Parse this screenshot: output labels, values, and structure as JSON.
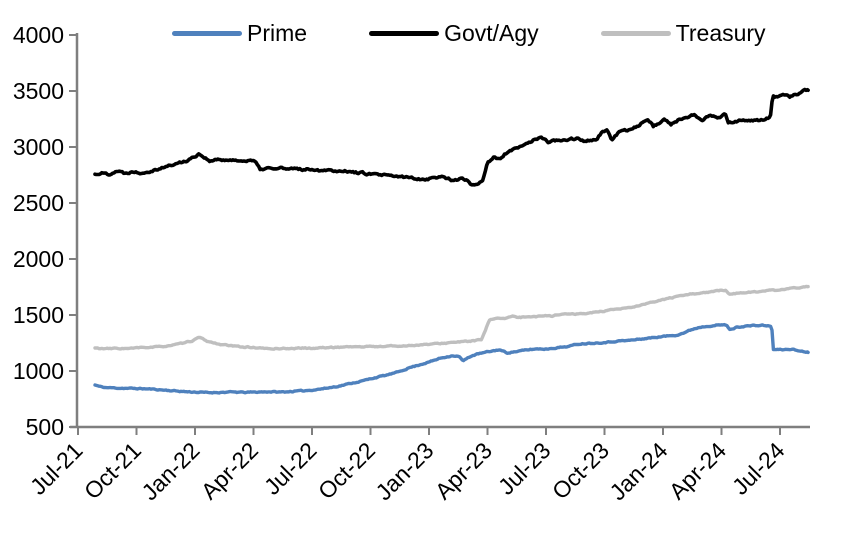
{
  "page": {
    "background": "#ffffff"
  },
  "chart_data": {
    "type": "line",
    "title": "",
    "legend": {
      "position": "top",
      "entries": [
        "Prime",
        "Govt/Agy",
        "Treasury"
      ]
    },
    "x_axis": {
      "unit": "months_since_Jul_2021",
      "tick_labels": [
        "Jul-21",
        "Oct-21",
        "Jan-22",
        "Apr-22",
        "Jul-22",
        "Oct-22",
        "Jan-23",
        "Apr-23",
        "Jul-23",
        "Oct-23",
        "Jan-24",
        "Apr-24",
        "Jul-24"
      ],
      "tick_months": [
        0,
        3,
        6,
        9,
        12,
        15,
        18,
        21,
        24,
        27,
        30,
        33,
        36
      ],
      "label_rotation_deg": -45,
      "data_start_month": 0.87,
      "data_end_month": 37.44
    },
    "y_axis": {
      "min": 500,
      "max": 4000,
      "step": 500,
      "tick_labels": [
        "500",
        "1000",
        "1500",
        "2000",
        "2500",
        "3000",
        "3500",
        "4000"
      ],
      "gridlines": false
    },
    "axis_color": "#7f7f7f",
    "series": [
      {
        "name": "Prime",
        "color": "#4F81BD",
        "points": [
          [
            0.87,
            875
          ],
          [
            1.1,
            862
          ],
          [
            1.4,
            852
          ],
          [
            2,
            848
          ],
          [
            2.6,
            845
          ],
          [
            3.2,
            843
          ],
          [
            3.8,
            838
          ],
          [
            4.4,
            830
          ],
          [
            5,
            822
          ],
          [
            5.6,
            815
          ],
          [
            6.2,
            810
          ],
          [
            6.8,
            807
          ],
          [
            7.4,
            810
          ],
          [
            8,
            812
          ],
          [
            8.6,
            809
          ],
          [
            9.2,
            812
          ],
          [
            9.8,
            815
          ],
          [
            10.4,
            812
          ],
          [
            11,
            818
          ],
          [
            11.6,
            824
          ],
          [
            12.2,
            834
          ],
          [
            12.8,
            848
          ],
          [
            13.4,
            866
          ],
          [
            14,
            890
          ],
          [
            14.6,
            912
          ],
          [
            15.2,
            940
          ],
          [
            15.8,
            962
          ],
          [
            16.4,
            990
          ],
          [
            17,
            1030
          ],
          [
            17.5,
            1055
          ],
          [
            18,
            1080
          ],
          [
            18.6,
            1115
          ],
          [
            19.2,
            1138
          ],
          [
            19.55,
            1128
          ],
          [
            19.75,
            1088
          ],
          [
            20.1,
            1130
          ],
          [
            20.5,
            1152
          ],
          [
            21,
            1170
          ],
          [
            21.6,
            1190
          ],
          [
            22,
            1162
          ],
          [
            22.4,
            1172
          ],
          [
            22.8,
            1182
          ],
          [
            23.2,
            1192
          ],
          [
            23.6,
            1198
          ],
          [
            24,
            1196
          ],
          [
            24.4,
            1205
          ],
          [
            24.8,
            1212
          ],
          [
            25.2,
            1222
          ],
          [
            25.7,
            1242
          ],
          [
            26.2,
            1248
          ],
          [
            26.7,
            1252
          ],
          [
            27.2,
            1258
          ],
          [
            27.7,
            1268
          ],
          [
            28.2,
            1272
          ],
          [
            28.7,
            1282
          ],
          [
            29.2,
            1292
          ],
          [
            29.7,
            1302
          ],
          [
            30.2,
            1312
          ],
          [
            30.7,
            1322
          ],
          [
            31.1,
            1342
          ],
          [
            31.5,
            1372
          ],
          [
            31.9,
            1392
          ],
          [
            32.3,
            1402
          ],
          [
            32.7,
            1408
          ],
          [
            33.1,
            1412
          ],
          [
            33.25,
            1408
          ],
          [
            33.45,
            1368
          ],
          [
            33.8,
            1392
          ],
          [
            34.3,
            1402
          ],
          [
            34.8,
            1406
          ],
          [
            35.2,
            1408
          ],
          [
            35.45,
            1400
          ],
          [
            35.58,
            1396
          ],
          [
            35.65,
            1192
          ],
          [
            36,
            1190
          ],
          [
            36.3,
            1192
          ],
          [
            36.6,
            1196
          ],
          [
            36.9,
            1182
          ],
          [
            37.15,
            1176
          ],
          [
            37.44,
            1168
          ]
        ]
      },
      {
        "name": "Govt/Agy",
        "color": "#000000",
        "points": [
          [
            0.87,
            2755
          ],
          [
            1.2,
            2768
          ],
          [
            1.6,
            2758
          ],
          [
            2,
            2788
          ],
          [
            2.4,
            2765
          ],
          [
            2.8,
            2782
          ],
          [
            3.2,
            2770
          ],
          [
            3.6,
            2782
          ],
          [
            4,
            2800
          ],
          [
            4.5,
            2824
          ],
          [
            5,
            2848
          ],
          [
            5.5,
            2874
          ],
          [
            5.9,
            2906
          ],
          [
            6.2,
            2940
          ],
          [
            6.5,
            2906
          ],
          [
            6.8,
            2872
          ],
          [
            7.2,
            2890
          ],
          [
            7.6,
            2874
          ],
          [
            8,
            2890
          ],
          [
            8.4,
            2870
          ],
          [
            8.8,
            2888
          ],
          [
            9.1,
            2866
          ],
          [
            9.35,
            2792
          ],
          [
            9.7,
            2816
          ],
          [
            10,
            2800
          ],
          [
            10.4,
            2816
          ],
          [
            10.8,
            2796
          ],
          [
            11.2,
            2810
          ],
          [
            11.6,
            2796
          ],
          [
            12,
            2806
          ],
          [
            12.4,
            2790
          ],
          [
            12.8,
            2800
          ],
          [
            13.2,
            2786
          ],
          [
            13.6,
            2792
          ],
          [
            14,
            2776
          ],
          [
            14.5,
            2770
          ],
          [
            15,
            2758
          ],
          [
            15.5,
            2750
          ],
          [
            16,
            2742
          ],
          [
            16.5,
            2734
          ],
          [
            17,
            2728
          ],
          [
            17.4,
            2718
          ],
          [
            17.8,
            2712
          ],
          [
            18.2,
            2724
          ],
          [
            18.6,
            2736
          ],
          [
            19,
            2720
          ],
          [
            19.3,
            2700
          ],
          [
            19.6,
            2718
          ],
          [
            19.9,
            2704
          ],
          [
            20.2,
            2662
          ],
          [
            20.5,
            2672
          ],
          [
            20.75,
            2706
          ],
          [
            21,
            2862
          ],
          [
            21.3,
            2906
          ],
          [
            21.6,
            2886
          ],
          [
            21.9,
            2940
          ],
          [
            22.3,
            2974
          ],
          [
            22.7,
            3000
          ],
          [
            23.1,
            3040
          ],
          [
            23.5,
            3074
          ],
          [
            23.8,
            3080
          ],
          [
            24.1,
            3044
          ],
          [
            24.4,
            3060
          ],
          [
            24.8,
            3050
          ],
          [
            25.2,
            3070
          ],
          [
            25.6,
            3080
          ],
          [
            25.9,
            3050
          ],
          [
            26.3,
            3062
          ],
          [
            26.6,
            3072
          ],
          [
            26.9,
            3140
          ],
          [
            27.15,
            3150
          ],
          [
            27.35,
            3056
          ],
          [
            27.7,
            3124
          ],
          [
            28,
            3140
          ],
          [
            28.4,
            3162
          ],
          [
            28.8,
            3200
          ],
          [
            29.2,
            3258
          ],
          [
            29.5,
            3186
          ],
          [
            29.8,
            3214
          ],
          [
            30.1,
            3246
          ],
          [
            30.4,
            3200
          ],
          [
            30.8,
            3240
          ],
          [
            31.2,
            3256
          ],
          [
            31.6,
            3290
          ],
          [
            32,
            3246
          ],
          [
            32.4,
            3290
          ],
          [
            32.8,
            3256
          ],
          [
            33.2,
            3298
          ],
          [
            33.35,
            3218
          ],
          [
            33.6,
            3226
          ],
          [
            34,
            3236
          ],
          [
            34.4,
            3230
          ],
          [
            34.8,
            3240
          ],
          [
            35.2,
            3248
          ],
          [
            35.5,
            3256
          ],
          [
            35.62,
            3452
          ],
          [
            35.9,
            3444
          ],
          [
            36.2,
            3464
          ],
          [
            36.5,
            3446
          ],
          [
            36.8,
            3470
          ],
          [
            37.1,
            3492
          ],
          [
            37.44,
            3514
          ]
        ]
      },
      {
        "name": "Treasury",
        "color": "#BFBFBF",
        "points": [
          [
            0.87,
            1205
          ],
          [
            1.4,
            1198
          ],
          [
            2,
            1202
          ],
          [
            2.6,
            1200
          ],
          [
            3.2,
            1208
          ],
          [
            3.8,
            1212
          ],
          [
            4.4,
            1220
          ],
          [
            5,
            1235
          ],
          [
            5.5,
            1252
          ],
          [
            5.9,
            1272
          ],
          [
            6.2,
            1300
          ],
          [
            6.6,
            1268
          ],
          [
            7,
            1248
          ],
          [
            7.5,
            1232
          ],
          [
            8,
            1222
          ],
          [
            8.5,
            1215
          ],
          [
            9,
            1210
          ],
          [
            9.5,
            1202
          ],
          [
            10,
            1198
          ],
          [
            10.5,
            1202
          ],
          [
            11,
            1200
          ],
          [
            11.5,
            1206
          ],
          [
            12,
            1202
          ],
          [
            12.5,
            1208
          ],
          [
            13,
            1210
          ],
          [
            13.5,
            1214
          ],
          [
            14,
            1218
          ],
          [
            14.5,
            1215
          ],
          [
            15,
            1220
          ],
          [
            15.5,
            1218
          ],
          [
            16,
            1224
          ],
          [
            16.5,
            1222
          ],
          [
            17,
            1228
          ],
          [
            17.5,
            1232
          ],
          [
            18,
            1238
          ],
          [
            18.5,
            1245
          ],
          [
            19,
            1252
          ],
          [
            19.5,
            1258
          ],
          [
            20,
            1265
          ],
          [
            20.4,
            1272
          ],
          [
            20.7,
            1280
          ],
          [
            21.1,
            1452
          ],
          [
            21.5,
            1476
          ],
          [
            21.9,
            1470
          ],
          [
            22.3,
            1486
          ],
          [
            22.7,
            1478
          ],
          [
            23.1,
            1490
          ],
          [
            23.5,
            1484
          ],
          [
            23.9,
            1496
          ],
          [
            24.3,
            1492
          ],
          [
            24.7,
            1504
          ],
          [
            25.1,
            1512
          ],
          [
            25.5,
            1506
          ],
          [
            25.9,
            1514
          ],
          [
            26.3,
            1520
          ],
          [
            26.7,
            1528
          ],
          [
            27.1,
            1536
          ],
          [
            27.5,
            1548
          ],
          [
            27.9,
            1556
          ],
          [
            28.3,
            1566
          ],
          [
            28.7,
            1580
          ],
          [
            29.1,
            1598
          ],
          [
            29.5,
            1614
          ],
          [
            29.9,
            1632
          ],
          [
            30.3,
            1650
          ],
          [
            30.7,
            1662
          ],
          [
            31.1,
            1678
          ],
          [
            31.5,
            1690
          ],
          [
            31.9,
            1696
          ],
          [
            32.3,
            1702
          ],
          [
            32.7,
            1712
          ],
          [
            33.1,
            1722
          ],
          [
            33.2,
            1720
          ],
          [
            33.45,
            1684
          ],
          [
            33.8,
            1694
          ],
          [
            34.3,
            1700
          ],
          [
            34.7,
            1708
          ],
          [
            35.1,
            1712
          ],
          [
            35.5,
            1718
          ],
          [
            35.9,
            1724
          ],
          [
            36.3,
            1730
          ],
          [
            36.7,
            1738
          ],
          [
            37.1,
            1746
          ],
          [
            37.44,
            1756
          ]
        ]
      }
    ]
  }
}
